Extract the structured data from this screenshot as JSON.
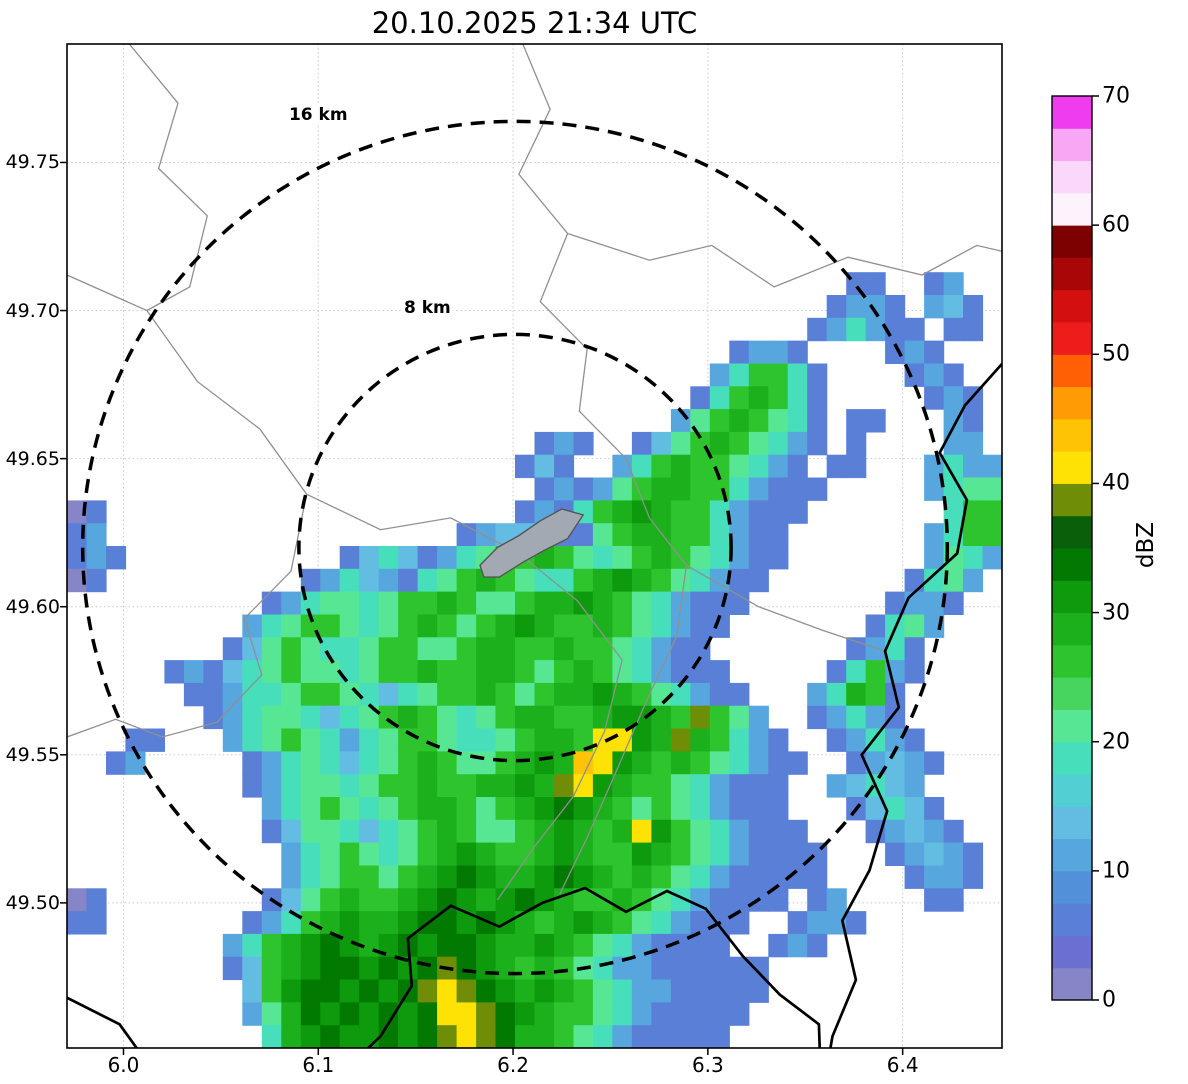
{
  "title": "20.10.2025 21:34 UTC",
  "axes": {
    "x": {
      "range": [
        5.971,
        6.451
      ],
      "ticks": [
        {
          "v": 6.0,
          "label": "6.0"
        },
        {
          "v": 6.1,
          "label": "6.1"
        },
        {
          "v": 6.2,
          "label": "6.2"
        },
        {
          "v": 6.3,
          "label": "6.3"
        },
        {
          "v": 6.4,
          "label": "6.4"
        }
      ]
    },
    "y": {
      "range": [
        49.451,
        49.79
      ],
      "ticks": [
        {
          "v": 49.5,
          "label": "49.50"
        },
        {
          "v": 49.55,
          "label": "49.55"
        },
        {
          "v": 49.6,
          "label": "49.60"
        },
        {
          "v": 49.65,
          "label": "49.65"
        },
        {
          "v": 49.7,
          "label": "49.70"
        },
        {
          "v": 49.75,
          "label": "49.75"
        }
      ]
    }
  },
  "colorbar": {
    "label": "dBZ",
    "min": 0,
    "max": 70,
    "step": 2.5,
    "ticks": [
      {
        "v": 0,
        "label": "0"
      },
      {
        "v": 10,
        "label": "10"
      },
      {
        "v": 20,
        "label": "20"
      },
      {
        "v": 30,
        "label": "30"
      },
      {
        "v": 40,
        "label": "40"
      },
      {
        "v": 50,
        "label": "50"
      },
      {
        "v": 60,
        "label": "60"
      },
      {
        "v": 70,
        "label": "70"
      }
    ],
    "colors": [
      "#8585c7",
      "#6b6fd0",
      "#5a7fd6",
      "#5290da",
      "#57a7de",
      "#63bce2",
      "#52cfd2",
      "#47debb",
      "#57e794",
      "#47d45f",
      "#2ec42e",
      "#1cb01c",
      "#0d9b0d",
      "#027a02",
      "#0a5f0a",
      "#6f8d07",
      "#ffe205",
      "#ffc305",
      "#ff9b05",
      "#ff6005",
      "#ef1c1c",
      "#d40f0f",
      "#a90707",
      "#7e0101",
      "#fdf3fd",
      "#fbd7fb",
      "#f8a7f4",
      "#ee3cee"
    ]
  },
  "range_rings": {
    "center": {
      "lon": 6.201,
      "lat": 49.62
    },
    "km_per_deg_lon": 72.1,
    "km_per_deg_lat": 111.2,
    "rings": [
      {
        "label": "16 km",
        "radius_km": 16,
        "label_lon": 6.1,
        "label_lat": 49.766
      },
      {
        "label": "8 km",
        "radius_km": 8,
        "label_lon": 6.156,
        "label_lat": 49.701
      }
    ]
  },
  "map": {
    "gray_color": "#909090",
    "black_color": "#000000",
    "city_fill": "#a3a9b3",
    "gray_lines": [
      [
        [
          5.971,
          49.712
        ],
        [
          6.012,
          49.7
        ],
        [
          6.038,
          49.676
        ],
        [
          6.07,
          49.66
        ],
        [
          6.094,
          49.638
        ],
        [
          6.086,
          49.612
        ],
        [
          6.062,
          49.596
        ],
        [
          6.071,
          49.577
        ],
        [
          6.048,
          49.561
        ],
        [
          6.02,
          49.556
        ],
        [
          5.996,
          49.562
        ],
        [
          5.971,
          49.556
        ]
      ],
      [
        [
          6.205,
          49.79
        ],
        [
          6.219,
          49.768
        ],
        [
          6.203,
          49.746
        ],
        [
          6.228,
          49.726
        ],
        [
          6.214,
          49.703
        ],
        [
          6.238,
          49.687
        ],
        [
          6.234,
          49.666
        ],
        [
          6.258,
          49.65
        ],
        [
          6.27,
          49.63
        ],
        [
          6.289,
          49.614
        ],
        [
          6.284,
          49.59
        ],
        [
          6.269,
          49.569
        ],
        [
          6.254,
          49.546
        ],
        [
          6.238,
          49.522
        ],
        [
          6.224,
          49.503
        ]
      ],
      [
        [
          6.228,
          49.726
        ],
        [
          6.27,
          49.717
        ],
        [
          6.302,
          49.722
        ],
        [
          6.334,
          49.708
        ],
        [
          6.372,
          49.718
        ],
        [
          6.41,
          49.712
        ],
        [
          6.438,
          49.722
        ],
        [
          6.451,
          49.72
        ]
      ],
      [
        [
          6.003,
          49.79
        ],
        [
          6.028,
          49.77
        ],
        [
          6.018,
          49.748
        ],
        [
          6.043,
          49.732
        ],
        [
          6.034,
          49.708
        ],
        [
          6.012,
          49.7
        ]
      ],
      [
        [
          6.094,
          49.638
        ],
        [
          6.132,
          49.626
        ],
        [
          6.168,
          49.63
        ],
        [
          6.203,
          49.618
        ],
        [
          6.233,
          49.602
        ],
        [
          6.256,
          49.582
        ],
        [
          6.247,
          49.558
        ],
        [
          6.231,
          49.536
        ],
        [
          6.211,
          49.519
        ],
        [
          6.192,
          49.501
        ]
      ],
      [
        [
          6.289,
          49.614
        ],
        [
          6.326,
          49.6
        ],
        [
          6.359,
          49.592
        ],
        [
          6.391,
          49.585
        ]
      ]
    ],
    "black_lines": [
      [
        [
          6.451,
          49.682
        ],
        [
          6.432,
          49.668
        ],
        [
          6.419,
          49.652
        ],
        [
          6.433,
          49.636
        ],
        [
          6.428,
          49.618
        ],
        [
          6.403,
          49.603
        ],
        [
          6.391,
          49.585
        ],
        [
          6.398,
          49.566
        ],
        [
          6.379,
          49.55
        ],
        [
          6.392,
          49.531
        ],
        [
          6.383,
          49.511
        ],
        [
          6.369,
          49.494
        ],
        [
          6.376,
          49.474
        ],
        [
          6.364,
          49.455
        ],
        [
          6.36,
          49.44
        ]
      ],
      [
        [
          6.108,
          49.44
        ],
        [
          6.132,
          49.455
        ],
        [
          6.148,
          49.472
        ],
        [
          6.146,
          49.488
        ],
        [
          6.168,
          49.499
        ],
        [
          6.193,
          49.492
        ],
        [
          6.215,
          49.5
        ],
        [
          6.237,
          49.505
        ],
        [
          6.258,
          49.497
        ],
        [
          6.279,
          49.504
        ],
        [
          6.299,
          49.498
        ],
        [
          6.318,
          49.482
        ],
        [
          6.337,
          49.469
        ],
        [
          6.357,
          49.459
        ],
        [
          6.358,
          49.44
        ]
      ],
      [
        [
          5.971,
          49.468
        ],
        [
          5.998,
          49.459
        ],
        [
          6.01,
          49.448
        ],
        [
          6.016,
          49.44
        ]
      ]
    ],
    "city_polygon": [
      [
        6.183,
        49.614
      ],
      [
        6.192,
        49.62
      ],
      [
        6.203,
        49.624
      ],
      [
        6.214,
        49.629
      ],
      [
        6.225,
        49.633
      ],
      [
        6.236,
        49.631
      ],
      [
        6.228,
        49.623
      ],
      [
        6.216,
        49.619
      ],
      [
        6.205,
        49.615
      ],
      [
        6.193,
        49.61
      ],
      [
        6.185,
        49.61
      ]
    ]
  },
  "chart_data": {
    "type": "heatmap",
    "title": "20.10.2025 21:34 UTC",
    "units": "dBZ",
    "xlabel": "",
    "ylabel": "",
    "x_range": [
      5.971,
      6.451
    ],
    "y_range": [
      49.451,
      49.79
    ],
    "value_range": [
      0,
      70
    ],
    "grid": {
      "ncols": 48,
      "nrows": 44,
      "levels": {
        "a": 2,
        "b": 6,
        "c": 11,
        "d": 14,
        "e": 18,
        "f": 21,
        "g": 26,
        "h": 28,
        "i": 31,
        "j": 34,
        "k": 38,
        "l": 41,
        "m": 44
      },
      "rows": [
        "................................................",
        "................................................",
        "................................................",
        "................................................",
        "................................................",
        "................................................",
        "................................................",
        "................................................",
        "................................................",
        "................................................",
        "........................................bb..bc..",
        ".......................................bccb.cdb.",
        "......................................bcecbb.bb.",
        "..................................bccb....bcb...",
        ".................................ceggeb....bcb..",
        "................................beghgeb.....bcb.",
        "...............................cfghgfeb.bb...cb.",
        "........................bcb..bdfghgfecb.b....cc.",
        ".......................bdb..ceghggfecb.bb...cecc",
        "........................bcbcfghhggecbbb.....ceff",
        "ab.....................bcbeghihggecbbb.......egg",
        "bc..................bcddcbbfghhggecbb.......cegg",
        "bcb...........bdedbcefgghgfefghgfecbb.......cfec",
        "ab..........bcedcbefghgfeeghihgfecbb.......befc.",
        "..........bceffefgghgffghhihgfecbbb.......bccb..",
        ".........cefggfefghgfghihgghgfecbb.......befc...",
        "........bdfgfeefggffghhgghggfecbb.......bceb....",
        ".....bcbdefgffefgghgghhgfghgfecbbb.....begcb....",
        "......bbceefggfedefgghgfghhihgfecbb...cehgb.....",
        ".......bceffedefghgfefghhgghiihgkgfc..bcecb.....",
        "...bb...cefgfecefggfeefghhgllihkhgecb..bcecb....",
        "..bc.....bcefedefghgffghihmlihghgfecbb..bcdcb...",
        ".........bceffefgghgghhihklihggfecbbb..cdedc....",
        "..........cefgfefghhgfghijihgfgfecbbb...bdedb...",
        "..........bdffedefghgffghihghligfecbbb...bcdcb..",
        "...........cefgfefghihgghihggihgfecbbbb...bcdcb.",
        "...........cefggfghijihhijihghgfecbbbbb....bccb.",
        "ab........bdfghgghijihijihgghgfecbbbb.bc....bb..",
        "bb.......bceghihhijjijihghihgfecbbb..bccb.......",
        "........ceghijihijijjihhihgfecbbbb..bcb.........",
        "........bdghijjijijkjihghgfeccbbbbbb............",
        ".........dgijjijijklkjihihgfeccbbbbb............",
        ".........cfhjijijijllkjihggfecbbbbb.............",
        "..........ehijiijijklkjhhgfecbbbbb.............."
      ]
    }
  }
}
